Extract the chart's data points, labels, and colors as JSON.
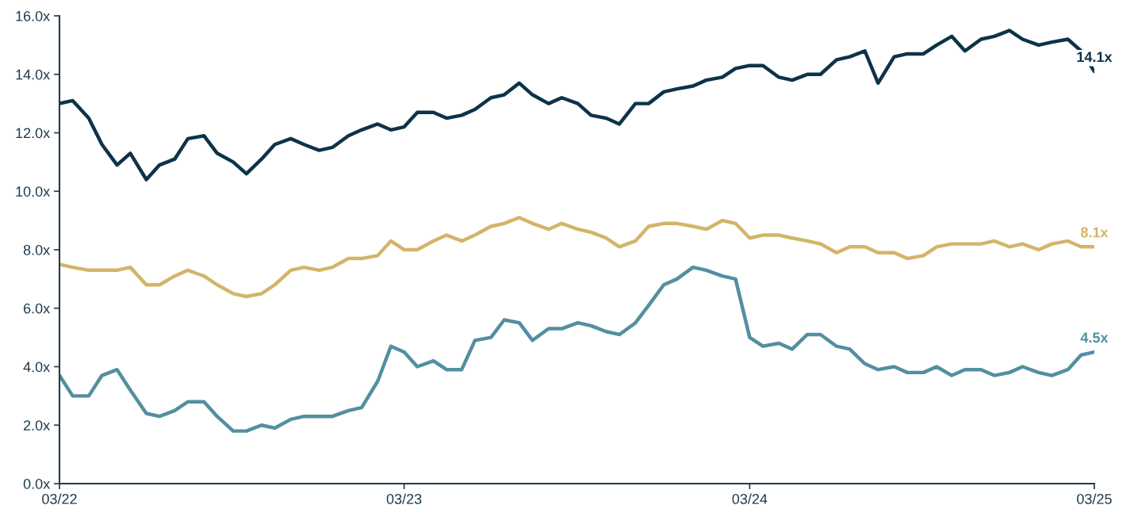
{
  "chart_data": {
    "type": "line",
    "x": [
      "2022-03-01",
      "2022-03-15",
      "2022-04-01",
      "2022-04-15",
      "2022-05-01",
      "2022-05-15",
      "2022-06-01",
      "2022-06-15",
      "2022-07-01",
      "2022-07-15",
      "2022-08-01",
      "2022-08-15",
      "2022-09-01",
      "2022-09-15",
      "2022-10-01",
      "2022-10-15",
      "2022-11-01",
      "2022-11-15",
      "2022-12-01",
      "2022-12-15",
      "2023-01-01",
      "2023-01-15",
      "2023-02-01",
      "2023-02-15",
      "2023-03-01",
      "2023-03-15",
      "2023-04-01",
      "2023-04-15",
      "2023-05-01",
      "2023-05-15",
      "2023-06-01",
      "2023-06-15",
      "2023-07-01",
      "2023-07-15",
      "2023-08-01",
      "2023-08-15",
      "2023-09-01",
      "2023-09-15",
      "2023-10-01",
      "2023-10-15",
      "2023-11-01",
      "2023-11-15",
      "2023-12-01",
      "2023-12-15",
      "2024-01-01",
      "2024-01-15",
      "2024-02-01",
      "2024-02-15",
      "2024-03-01",
      "2024-03-15",
      "2024-04-01",
      "2024-04-15",
      "2024-05-01",
      "2024-05-15",
      "2024-06-01",
      "2024-06-15",
      "2024-07-01",
      "2024-07-15",
      "2024-08-01",
      "2024-08-15",
      "2024-09-01",
      "2024-09-15",
      "2024-10-01",
      "2024-10-15",
      "2024-11-01",
      "2024-11-15",
      "2024-12-01",
      "2024-12-15",
      "2025-01-01",
      "2025-01-15",
      "2025-02-01",
      "2025-02-15",
      "2025-03-01"
    ],
    "series": [
      {
        "color": "#0d3349",
        "values": [
          13.0,
          13.1,
          12.5,
          11.6,
          10.9,
          11.3,
          10.4,
          10.9,
          11.1,
          11.8,
          11.9,
          11.3,
          11.0,
          10.6,
          11.1,
          11.6,
          11.8,
          11.6,
          11.4,
          11.5,
          11.9,
          12.1,
          12.3,
          12.1,
          12.2,
          12.7,
          12.7,
          12.5,
          12.6,
          12.8,
          13.2,
          13.3,
          13.7,
          13.3,
          13.0,
          13.2,
          13.0,
          12.6,
          12.5,
          12.3,
          13.0,
          13.0,
          13.4,
          13.5,
          13.6,
          13.8,
          13.9,
          14.2,
          14.3,
          14.3,
          13.9,
          13.8,
          14.0,
          14.0,
          14.5,
          14.6,
          14.8,
          13.7,
          14.6,
          14.7,
          14.7,
          15.0,
          15.3,
          14.8,
          15.2,
          15.3,
          15.5,
          15.2,
          15.0,
          15.1,
          15.2,
          14.8,
          14.1
        ],
        "value_labels": [
          null,
          null,
          null,
          null,
          null,
          null,
          null,
          null,
          null,
          null,
          null,
          null,
          null,
          null,
          null,
          null,
          null,
          null,
          null,
          null,
          null,
          null,
          null,
          null,
          null,
          null,
          null,
          null,
          null,
          null,
          null,
          null,
          null,
          null,
          null,
          null,
          null,
          null,
          null,
          null,
          null,
          null,
          null,
          null,
          null,
          null,
          null,
          null,
          null,
          null,
          null,
          null,
          null,
          null,
          null,
          null,
          null,
          null,
          null,
          null,
          null,
          null,
          null,
          null,
          null,
          null,
          null,
          null,
          null,
          null,
          null,
          null,
          "14.1x"
        ]
      },
      {
        "color": "#d4b46a",
        "values": [
          7.5,
          7.4,
          7.3,
          7.3,
          7.3,
          7.4,
          6.8,
          6.8,
          7.1,
          7.3,
          7.1,
          6.8,
          6.5,
          6.4,
          6.5,
          6.8,
          7.3,
          7.4,
          7.3,
          7.4,
          7.7,
          7.7,
          7.8,
          8.3,
          8.0,
          8.0,
          8.3,
          8.5,
          8.3,
          8.5,
          8.8,
          8.9,
          9.1,
          8.9,
          8.7,
          8.9,
          8.7,
          8.6,
          8.4,
          8.1,
          8.3,
          8.8,
          8.9,
          8.9,
          8.8,
          8.7,
          9.0,
          8.9,
          8.4,
          8.5,
          8.5,
          8.4,
          8.3,
          8.2,
          7.9,
          8.1,
          8.1,
          7.9,
          7.9,
          7.7,
          7.8,
          8.1,
          8.2,
          8.2,
          8.2,
          8.3,
          8.1,
          8.2,
          8.0,
          8.2,
          8.3,
          8.1,
          8.1
        ],
        "value_labels": [
          null,
          null,
          null,
          null,
          null,
          null,
          null,
          null,
          null,
          null,
          null,
          null,
          null,
          null,
          null,
          null,
          null,
          null,
          null,
          null,
          null,
          null,
          null,
          null,
          null,
          null,
          null,
          null,
          null,
          null,
          null,
          null,
          null,
          null,
          null,
          null,
          null,
          null,
          null,
          null,
          null,
          null,
          null,
          null,
          null,
          null,
          null,
          null,
          null,
          null,
          null,
          null,
          null,
          null,
          null,
          null,
          null,
          null,
          null,
          null,
          null,
          null,
          null,
          null,
          null,
          null,
          null,
          null,
          null,
          null,
          null,
          null,
          "8.1x"
        ]
      },
      {
        "color": "#528fa0",
        "values": [
          3.7,
          3.0,
          3.0,
          3.7,
          3.9,
          3.2,
          2.4,
          2.3,
          2.5,
          2.8,
          2.8,
          2.3,
          1.8,
          1.8,
          2.0,
          1.9,
          2.2,
          2.3,
          2.3,
          2.3,
          2.5,
          2.6,
          3.5,
          4.7,
          4.5,
          4.0,
          4.2,
          3.9,
          3.9,
          4.9,
          5.0,
          5.6,
          5.5,
          4.9,
          5.3,
          5.3,
          5.5,
          5.4,
          5.2,
          5.1,
          5.5,
          6.1,
          6.8,
          7.0,
          7.4,
          7.3,
          7.1,
          7.0,
          5.0,
          4.7,
          4.8,
          4.6,
          5.1,
          5.1,
          4.7,
          4.6,
          4.1,
          3.9,
          4.0,
          3.8,
          3.8,
          4.0,
          3.7,
          3.9,
          3.9,
          3.7,
          3.8,
          4.0,
          3.8,
          3.7,
          3.9,
          4.4,
          4.5
        ],
        "value_labels": [
          null,
          null,
          null,
          null,
          null,
          null,
          null,
          null,
          null,
          null,
          null,
          null,
          null,
          null,
          null,
          null,
          null,
          null,
          null,
          null,
          null,
          null,
          null,
          null,
          null,
          null,
          null,
          null,
          null,
          null,
          null,
          null,
          null,
          null,
          null,
          null,
          null,
          null,
          null,
          null,
          null,
          null,
          null,
          null,
          null,
          null,
          null,
          null,
          null,
          null,
          null,
          null,
          null,
          null,
          null,
          null,
          null,
          null,
          null,
          null,
          null,
          null,
          null,
          null,
          null,
          null,
          null,
          null,
          null,
          null,
          null,
          null,
          "4.5x"
        ]
      }
    ],
    "xlim": [
      "2022-03-01",
      "2025-03-01"
    ],
    "xticks": [
      {
        "value": "2022-03-01",
        "label": "03/22"
      },
      {
        "value": "2023-03-01",
        "label": "03/23"
      },
      {
        "value": "2024-03-01",
        "label": "03/24"
      },
      {
        "value": "2025-03-01",
        "label": "03/25"
      }
    ],
    "ylim": [
      0,
      16
    ],
    "yticks": [
      {
        "value": 0,
        "label": "0.0x"
      },
      {
        "value": 2,
        "label": "2.0x"
      },
      {
        "value": 4,
        "label": "4.0x"
      },
      {
        "value": 6,
        "label": "6.0x"
      },
      {
        "value": 8,
        "label": "8.0x"
      },
      {
        "value": 10,
        "label": "10.0x"
      },
      {
        "value": 12,
        "label": "12.0x"
      },
      {
        "value": 14,
        "label": "14.0x"
      },
      {
        "value": 16,
        "label": "16.0x"
      }
    ],
    "grid": false,
    "line_style": "solid",
    "marker": "none"
  }
}
